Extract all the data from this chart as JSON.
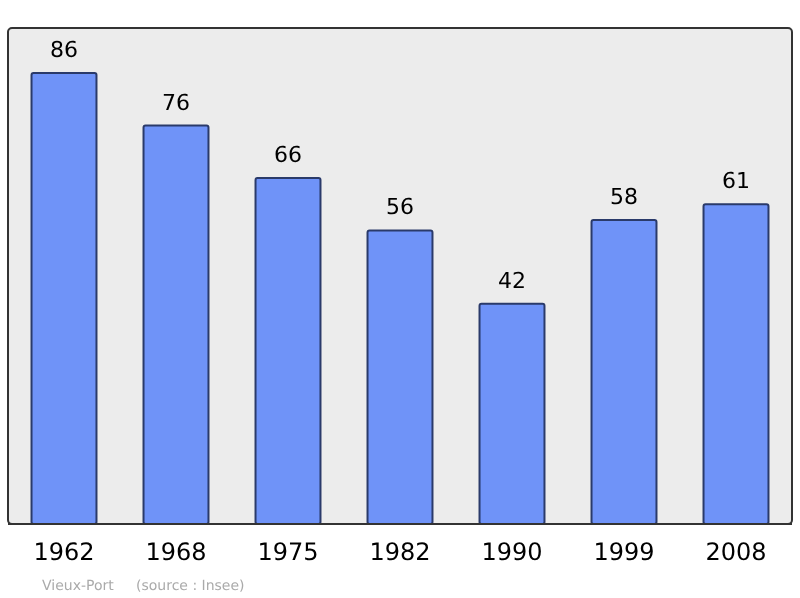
{
  "chart_data": {
    "type": "bar",
    "categories": [
      "1962",
      "1968",
      "1975",
      "1982",
      "1990",
      "1999",
      "2008"
    ],
    "values": [
      86,
      76,
      66,
      56,
      42,
      58,
      61
    ],
    "color": "#6f93f8",
    "data_labels": true,
    "annotations": [
      "Vieux-Port",
      "(source : Insee)"
    ]
  }
}
